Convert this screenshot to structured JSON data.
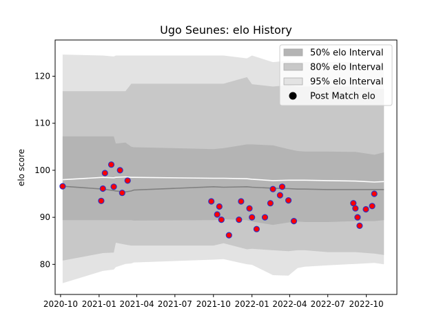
{
  "chart_data": {
    "type": "line",
    "title": "Ugo Seunes: elo History",
    "xlabel": "",
    "ylabel": "elo score",
    "xlim": [
      "2020-09-18",
      "2022-12-13"
    ],
    "ylim": [
      73.6,
      127.7
    ],
    "x_ticks": [
      "2020-10",
      "2021-01",
      "2021-04",
      "2021-07",
      "2021-10",
      "2022-01",
      "2022-04",
      "2022-07",
      "2022-10"
    ],
    "y_ticks": [
      80,
      90,
      100,
      110,
      120
    ],
    "legend": {
      "placement": "top-right",
      "entries": [
        "50% elo Interval",
        "80% elo Interval",
        "95% elo Interval",
        "Post Match elo"
      ]
    },
    "grid": false,
    "colors": {
      "band_50": "#b4b4b4",
      "band_80": "#c8c8c8",
      "band_95": "#e3e3e3",
      "median_line": "#808080",
      "mean_line": "#ffffff",
      "point_fill": "#ff0000",
      "point_edge": "#3030c0"
    },
    "dates": [
      "2020-10-06",
      "2021-01-10",
      "2021-02-05",
      "2021-02-10",
      "2021-03-05",
      "2021-03-19",
      "2021-03-25",
      "2021-10-01",
      "2021-10-25",
      "2021-12-20",
      "2022-01-01",
      "2022-02-20",
      "2022-03-29",
      "2022-04-20",
      "2022-05-07",
      "2022-07-01",
      "2022-09-05",
      "2022-10-20",
      "2022-11-12"
    ],
    "bands": {
      "p95_upper": [
        124.6,
        124.4,
        124.2,
        124.4,
        124.4,
        124.4,
        124.4,
        124.4,
        124.4,
        123.8,
        124.4,
        123.0,
        123.3,
        123.0,
        123.0,
        123.0,
        123.0,
        122.5,
        122.5
      ],
      "p80_upper": [
        116.8,
        116.8,
        116.8,
        116.8,
        116.8,
        118.4,
        118.4,
        118.4,
        118.4,
        119.8,
        118.3,
        117.8,
        118.1,
        117.8,
        117.8,
        117.8,
        117.8,
        117.3,
        117.3
      ],
      "p50_upper": [
        107.2,
        107.2,
        107.2,
        105.7,
        105.9,
        105.0,
        104.9,
        104.5,
        104.7,
        105.5,
        105.5,
        105.3,
        104.5,
        104.1,
        104.0,
        104.0,
        103.9,
        103.3,
        103.8
      ],
      "p50_lower": [
        89.4,
        89.4,
        89.4,
        89.4,
        89.4,
        89.4,
        89.3,
        89.4,
        89.6,
        89.4,
        89.1,
        88.4,
        88.9,
        89.1,
        89.0,
        89.0,
        89.2,
        89.2,
        89.4
      ],
      "p80_lower": [
        80.8,
        82.4,
        82.5,
        84.6,
        84.2,
        84.0,
        84.0,
        84.0,
        84.5,
        83.2,
        83.3,
        83.0,
        82.8,
        83.0,
        83.0,
        82.6,
        82.6,
        82.3,
        82.0
      ],
      "p95_lower": [
        76.0,
        78.6,
        78.9,
        79.4,
        80.1,
        80.2,
        80.4,
        81.0,
        81.1,
        80.0,
        79.9,
        77.7,
        77.6,
        79.2,
        79.5,
        79.8,
        80.1,
        80.3,
        80.0
      ]
    },
    "median": [
      96.6,
      96.0,
      95.7,
      95.6,
      95.4,
      95.6,
      95.8,
      96.5,
      96.4,
      96.5,
      96.4,
      96.2,
      96.1,
      96.0,
      96.0,
      95.9,
      95.9,
      95.9,
      95.9
    ],
    "mean": [
      98.0,
      98.5,
      98.4,
      98.5,
      98.6,
      98.5,
      98.5,
      98.3,
      98.3,
      98.2,
      98.1,
      97.8,
      97.9,
      97.9,
      97.9,
      97.8,
      97.7,
      97.5,
      97.6
    ],
    "post_match": [
      {
        "x": "2020-10-06",
        "y": 96.6
      },
      {
        "x": "2021-01-06",
        "y": 93.5
      },
      {
        "x": "2021-01-10",
        "y": 96.1
      },
      {
        "x": "2021-01-15",
        "y": 99.4
      },
      {
        "x": "2021-01-30",
        "y": 101.2
      },
      {
        "x": "2021-02-05",
        "y": 96.5
      },
      {
        "x": "2021-02-20",
        "y": 100.0
      },
      {
        "x": "2021-02-25",
        "y": 95.2
      },
      {
        "x": "2021-03-10",
        "y": 97.8
      },
      {
        "x": "2021-09-26",
        "y": 93.4
      },
      {
        "x": "2021-10-10",
        "y": 90.6
      },
      {
        "x": "2021-10-15",
        "y": 92.3
      },
      {
        "x": "2021-10-20",
        "y": 89.5
      },
      {
        "x": "2021-11-07",
        "y": 86.2
      },
      {
        "x": "2021-12-01",
        "y": 89.5
      },
      {
        "x": "2021-12-06",
        "y": 93.4
      },
      {
        "x": "2021-12-26",
        "y": 91.9
      },
      {
        "x": "2022-01-01",
        "y": 90.0
      },
      {
        "x": "2022-01-12",
        "y": 87.5
      },
      {
        "x": "2022-02-01",
        "y": 90.0
      },
      {
        "x": "2022-02-14",
        "y": 93.0
      },
      {
        "x": "2022-02-20",
        "y": 96.0
      },
      {
        "x": "2022-03-09",
        "y": 94.7
      },
      {
        "x": "2022-03-14",
        "y": 96.5
      },
      {
        "x": "2022-03-29",
        "y": 93.6
      },
      {
        "x": "2022-04-11",
        "y": 89.2
      },
      {
        "x": "2022-08-31",
        "y": 93.0
      },
      {
        "x": "2022-09-05",
        "y": 91.9
      },
      {
        "x": "2022-09-10",
        "y": 90.0
      },
      {
        "x": "2022-09-15",
        "y": 88.2
      },
      {
        "x": "2022-09-30",
        "y": 91.7
      },
      {
        "x": "2022-10-15",
        "y": 92.4
      },
      {
        "x": "2022-10-20",
        "y": 95.0
      }
    ]
  }
}
